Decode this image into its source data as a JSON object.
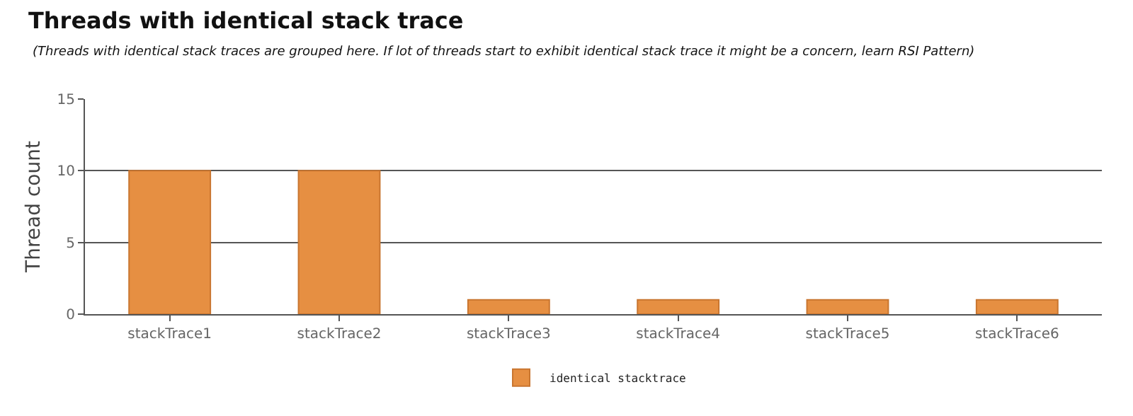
{
  "chart_data": {
    "type": "bar",
    "title": "Threads with identical stack trace",
    "subtitle": "(Threads with identical stack traces are grouped here. If lot of threads start to exhibit identical stack trace it might be a concern, learn RSI Pattern)",
    "ylabel": "Thread count",
    "categories": [
      "stackTrace1",
      "stackTrace2",
      "stackTrace3",
      "stackTrace4",
      "stackTrace5",
      "stackTrace6"
    ],
    "series": [
      {
        "name": "identical stacktrace",
        "color": "#e68f42",
        "values": [
          10,
          10,
          1,
          1,
          1,
          1
        ]
      }
    ],
    "ylim": [
      0,
      15
    ],
    "yticks": [
      0,
      5,
      10,
      15
    ],
    "grid": "y",
    "legend": "bottom"
  }
}
